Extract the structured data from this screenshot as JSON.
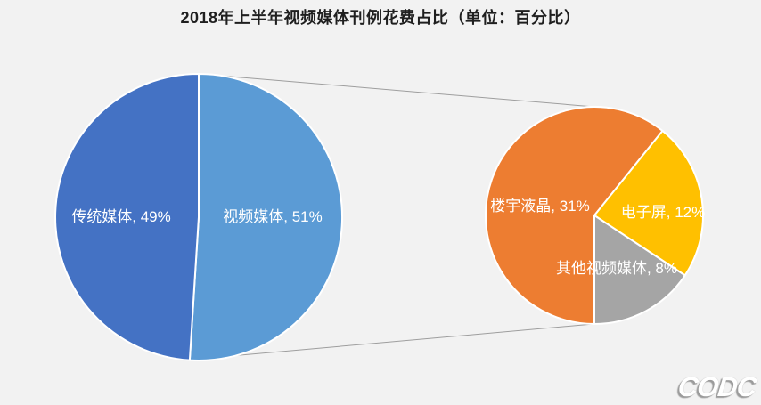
{
  "title": "2018年上半年视频媒体刊例花费占比（单位：百分比）",
  "logo": "CODC",
  "background_color": "#f2f2f2",
  "chart_data": {
    "type": "pie",
    "subtype": "pie-of-pie",
    "title": "2018年上半年视频媒体刊例花费占比（单位：百分比）",
    "unit": "百分比",
    "label_format": "{category}, {value}%",
    "primary_pie": {
      "total": 100,
      "start_angle": 0,
      "slices": [
        {
          "key": "video-media",
          "label": "视频媒体",
          "value": 51,
          "color": "#5B9BD5"
        },
        {
          "key": "traditional-media",
          "label": "传统媒体",
          "value": 49,
          "color": "#4472C4"
        }
      ]
    },
    "secondary_pie": {
      "description": "视频媒体 51% 细分",
      "total": 51,
      "start_angle": 180,
      "slices": [
        {
          "key": "building-lcd",
          "label": "楼宇液晶",
          "value": 31,
          "color": "#ED7D31"
        },
        {
          "key": "e-screen",
          "label": "电子屏",
          "value": 12,
          "color": "#FFC000"
        },
        {
          "key": "other-video-media",
          "label": "其他视频媒体",
          "value": 8,
          "color": "#A5A5A5"
        }
      ]
    },
    "connector_color": "#9e9e9e",
    "slice_border_color": "#ffffff",
    "label_text_color": "#ffffff",
    "legend": "none",
    "grid": false
  }
}
